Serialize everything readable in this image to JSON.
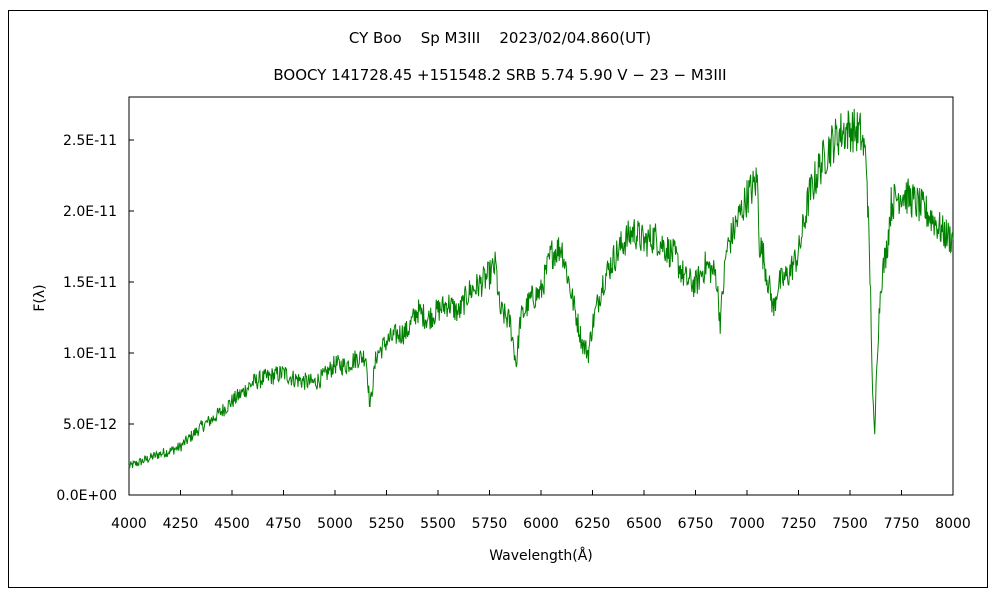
{
  "chart_data": {
    "type": "line",
    "title": "CY Boo    Sp M3III    2023/02/04.860(UT)",
    "subtitle": "BOOCY 141728.45 +151548.2 SRB 5.74 5.90 V − 23 − M3III",
    "xlabel": "Wavelength(Å)",
    "ylabel": "F(λ)",
    "xlim": [
      4000,
      8000
    ],
    "ylim": [
      0,
      2.5e-11
    ],
    "x_ticks": [
      4000,
      4250,
      4500,
      4750,
      5000,
      5250,
      5500,
      5750,
      6000,
      6250,
      6500,
      6750,
      7000,
      7250,
      7500,
      7750,
      8000
    ],
    "x_tick_labels": [
      "4000",
      "4250",
      "4500",
      "4750",
      "5000",
      "5250",
      "5500",
      "5750",
      "6000",
      "6250",
      "6500",
      "6750",
      "7000",
      "7250",
      "7500",
      "7750",
      "8000"
    ],
    "y_ticks": [
      0,
      5e-12,
      1e-11,
      1.5e-11,
      2e-11,
      2.5e-11
    ],
    "y_tick_labels": [
      "0.0E+00",
      "5.0E-12",
      "1.0E-11",
      "1.5E-11",
      "2.0E-11",
      "2.5E-11"
    ],
    "grid": false,
    "line_color": "#008000",
    "series": [
      {
        "x": [
          4000,
          4050,
          4100,
          4150,
          4200,
          4250,
          4300,
          4350,
          4400,
          4450,
          4500,
          4550,
          4600,
          4650,
          4700,
          4750,
          4800,
          4850,
          4900,
          4950,
          5000,
          5050,
          5100,
          5150,
          5170,
          5200,
          5250,
          5300,
          5350,
          5400,
          5450,
          5500,
          5550,
          5600,
          5650,
          5700,
          5750,
          5780,
          5800,
          5850,
          5880,
          5900,
          5950,
          6000,
          6050,
          6100,
          6150,
          6200,
          6230,
          6250,
          6300,
          6350,
          6400,
          6450,
          6500,
          6550,
          6600,
          6650,
          6700,
          6750,
          6800,
          6850,
          6870,
          6900,
          6950,
          7000,
          7050,
          7060,
          7080,
          7100,
          7130,
          7150,
          7200,
          7250,
          7300,
          7350,
          7400,
          7450,
          7500,
          7550,
          7580,
          7600,
          7610,
          7620,
          7630,
          7650,
          7680,
          7700,
          7750,
          7800,
          7850,
          7900,
          7950,
          8000
        ],
        "y": [
          2e-12,
          2.3e-12,
          2.6e-12,
          2.9e-12,
          3.1e-12,
          3.4e-12,
          4.1e-12,
          4.8e-12,
          5.3e-12,
          5.9e-12,
          6.6e-12,
          7.2e-12,
          7.9e-12,
          8.2e-12,
          8.4e-12,
          8.6e-12,
          8.2e-12,
          8e-12,
          7.9e-12,
          8.4e-12,
          9.2e-12,
          9.1e-12,
          9.6e-12,
          9.8e-12,
          6.2e-12,
          9.8e-12,
          1.08e-11,
          1.13e-11,
          1.15e-11,
          1.3e-11,
          1.24e-11,
          1.3e-11,
          1.35e-11,
          1.28e-11,
          1.43e-11,
          1.48e-11,
          1.55e-11,
          1.62e-11,
          1.3e-11,
          1.22e-11,
          9.2e-12,
          1.24e-11,
          1.38e-11,
          1.43e-11,
          1.7e-11,
          1.75e-11,
          1.4e-11,
          1.07e-11,
          1e-11,
          1.2e-11,
          1.5e-11,
          1.66e-11,
          1.78e-11,
          1.86e-11,
          1.78e-11,
          1.82e-11,
          1.75e-11,
          1.68e-11,
          1.52e-11,
          1.48e-11,
          1.62e-11,
          1.55e-11,
          1.22e-11,
          1.72e-11,
          1.92e-11,
          2.1e-11,
          2.22e-11,
          1.78e-11,
          1.68e-11,
          1.52e-11,
          1.3e-11,
          1.48e-11,
          1.55e-11,
          1.7e-11,
          2.1e-11,
          2.3e-11,
          2.45e-11,
          2.55e-11,
          2.58e-11,
          2.55e-11,
          2.35e-11,
          1.4e-11,
          7e-12,
          4e-12,
          9.5e-12,
          1.5e-11,
          1.75e-11,
          2.05e-11,
          2.13e-11,
          2.08e-11,
          2.02e-11,
          1.95e-11,
          1.85e-11,
          1.8e-11
        ]
      }
    ]
  }
}
